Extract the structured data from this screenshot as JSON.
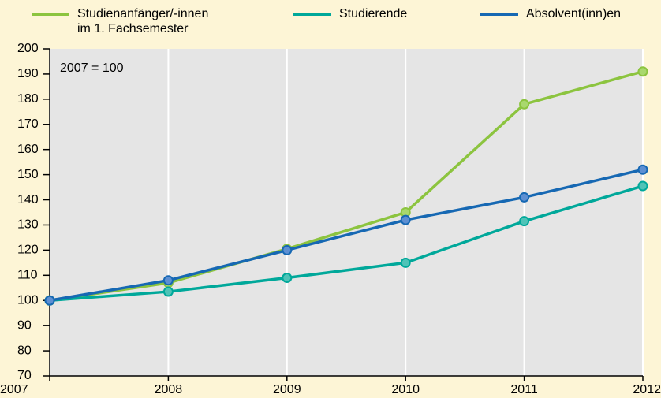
{
  "chart_data": {
    "type": "line",
    "annotation": "2007 = 100",
    "x": [
      2007,
      2008,
      2009,
      2010,
      2011,
      2012
    ],
    "series": [
      {
        "name": "Studienanfänger/-innen\nim 1. Fachsemester",
        "color": "#8cc43f",
        "marker_color": "#a9d86e",
        "values": [
          100,
          107,
          120.5,
          135,
          178,
          191
        ]
      },
      {
        "name": "Studierende",
        "color": "#00a89a",
        "marker_color": "#4fc3b7",
        "values": [
          100,
          103.5,
          109,
          115,
          131.5,
          145.5
        ]
      },
      {
        "name": "Absolvent(inn)en",
        "color": "#1668b3",
        "marker_color": "#5d8fd2",
        "values": [
          100,
          108,
          120,
          132,
          141,
          152
        ]
      }
    ],
    "xlim": [
      2007,
      2012
    ],
    "xticks": [
      2007,
      2008,
      2009,
      2010,
      2011,
      2012
    ],
    "ylim": [
      70,
      200
    ],
    "yticks": [
      70,
      80,
      90,
      100,
      110,
      120,
      130,
      140,
      150,
      160,
      170,
      180,
      190,
      200
    ],
    "grid": "x",
    "legend": "top",
    "plot_background": "#e5e5e5"
  }
}
